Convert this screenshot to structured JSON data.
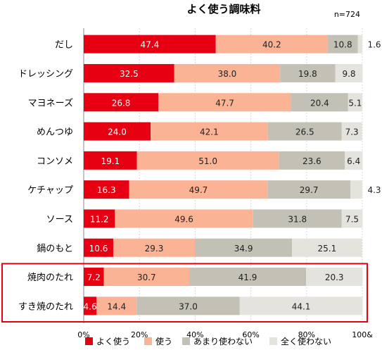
{
  "chart_data": {
    "type": "bar",
    "stacked": true,
    "orientation": "horizontal",
    "title": "よく使う調味料",
    "note": "n=724",
    "categories": [
      "だし",
      "ドレッシング",
      "マヨネーズ",
      "めんつゆ",
      "コンソメ",
      "ケチャップ",
      "ソース",
      "鍋のもと",
      "焼肉のたれ",
      "すき焼のたれ"
    ],
    "series": [
      {
        "name": "よく使う",
        "color": "#e60012",
        "label_color": "#ffffff",
        "values": [
          47.4,
          32.5,
          26.8,
          24.0,
          19.1,
          16.3,
          11.2,
          10.6,
          7.2,
          4.6
        ]
      },
      {
        "name": "使う",
        "color": "#fbb395",
        "label_color": "#222222",
        "values": [
          40.2,
          38.0,
          47.7,
          42.1,
          51.0,
          49.7,
          49.6,
          29.3,
          30.7,
          14.4
        ]
      },
      {
        "name": "あまり使わない",
        "color": "#c3c0b5",
        "label_color": "#222222",
        "values": [
          10.8,
          19.8,
          20.4,
          26.5,
          23.6,
          29.7,
          31.8,
          34.9,
          41.9,
          37.0
        ]
      },
      {
        "name": "全く使わない",
        "color": "#e5e3dd",
        "label_color": "#222222",
        "values": [
          1.6,
          9.8,
          5.1,
          7.3,
          6.4,
          4.3,
          7.5,
          25.1,
          20.3,
          44.1
        ]
      }
    ],
    "xlim": [
      0,
      100
    ],
    "xticks": [
      "0%",
      "20%",
      "40%",
      "60%",
      "80%",
      "100&"
    ],
    "outside_labels": [
      {
        "row": 0,
        "series": 3,
        "text": "1.6"
      },
      {
        "row": 5,
        "series": 3,
        "text": "4.3"
      }
    ],
    "highlight_rows": [
      8,
      9
    ],
    "highlight_color": "#e60012",
    "legend_position": "bottom"
  }
}
